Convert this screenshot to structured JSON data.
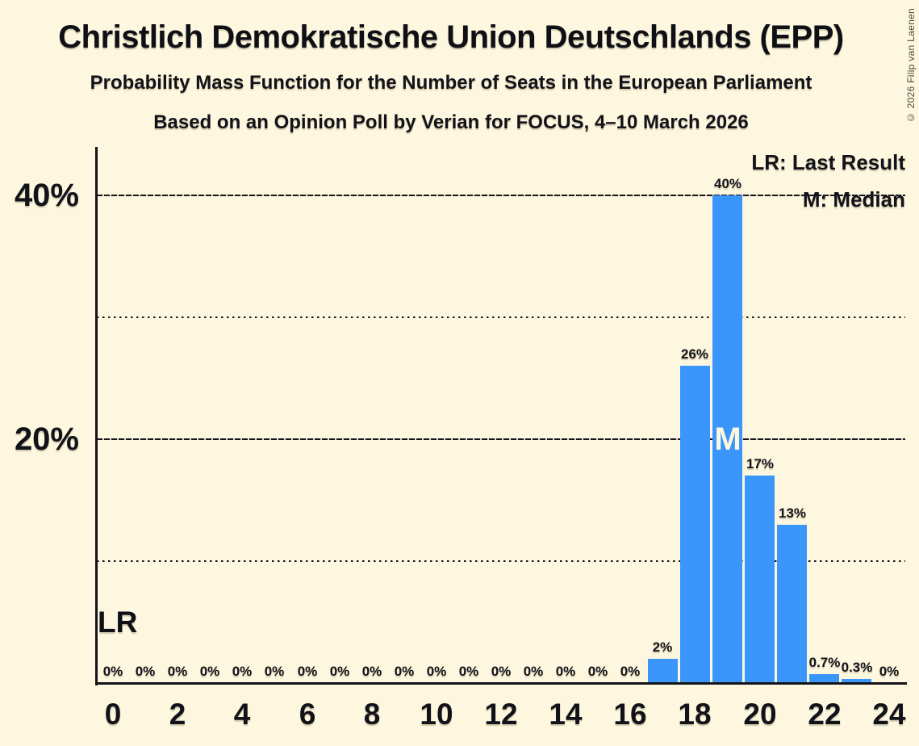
{
  "chart_data": {
    "type": "bar",
    "title": "Christlich Demokratische Union Deutschlands (EPP)",
    "subtitle": "Probability Mass Function for the Number of Seats in the European Parliament",
    "source_line": "Based on an Opinion Poll by Verian for FOCUS, 4–10 March 2026",
    "xlabel": "",
    "ylabel": "",
    "x": [
      0,
      1,
      2,
      3,
      4,
      5,
      6,
      7,
      8,
      9,
      10,
      11,
      12,
      13,
      14,
      15,
      16,
      17,
      18,
      19,
      20,
      21,
      22,
      23,
      24
    ],
    "values": [
      0,
      0,
      0,
      0,
      0,
      0,
      0,
      0,
      0,
      0,
      0,
      0,
      0,
      0,
      0,
      0,
      0,
      2,
      26,
      40,
      17,
      13,
      0.7,
      0.3,
      0
    ],
    "bar_labels": [
      "0%",
      "0%",
      "0%",
      "0%",
      "0%",
      "0%",
      "0%",
      "0%",
      "0%",
      "0%",
      "0%",
      "0%",
      "0%",
      "0%",
      "0%",
      "0%",
      "0%",
      "2%",
      "26%",
      "40%",
      "17%",
      "13%",
      "0.7%",
      "0.3%",
      "0%"
    ],
    "median_x": 19,
    "ylim": [
      0,
      44
    ],
    "grid": "horizontal",
    "legend_position": "top-right",
    "y_axis": {
      "major_ticks": [
        {
          "value": 40,
          "label": "40%"
        },
        {
          "value": 20,
          "label": "20%"
        }
      ],
      "minor_dotted_values": [
        30,
        10
      ]
    },
    "x_axis": {
      "tick_values": [
        0,
        2,
        4,
        6,
        8,
        10,
        12,
        14,
        16,
        18,
        20,
        22,
        24
      ]
    }
  },
  "legend": {
    "lr": "LR: Last Result",
    "m": "M: Median"
  },
  "annotations": {
    "lr": "LR",
    "m": "M"
  },
  "colors": {
    "background": "#FDF7DF",
    "bar": "#3A96FA",
    "text": "#12121A"
  },
  "copyright": "© 2026 Filip van Laenen"
}
